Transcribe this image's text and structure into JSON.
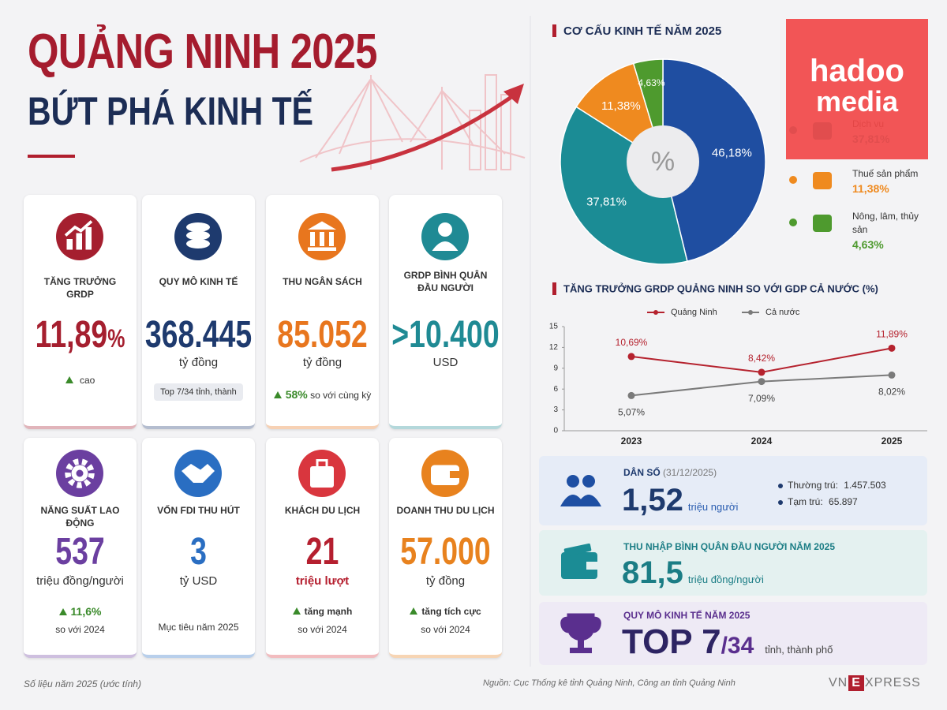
{
  "header": {
    "title": "QUẢNG NINH 2025",
    "subtitle": "BỨT PHÁ KINH TẾ"
  },
  "cards": [
    {
      "label": "TĂNG TRƯỞNG GRDP",
      "value": "11,89",
      "suffix": "%",
      "note": "cao"
    },
    {
      "label": "QUY MÔ KINH TẾ",
      "value": "368.445",
      "unit": "tỷ đồng",
      "badge": "Top 7/34 tỉnh, thành"
    },
    {
      "label": "THU NGÂN SÁCH",
      "value": "85.052",
      "unit": "tỷ đồng",
      "note_strong": "58%",
      "note": "so với cùng kỳ"
    },
    {
      "label": "GRDP BÌNH QUÂN ĐẦU NGƯỜI",
      "value": ">10.400",
      "unit": "USD"
    },
    {
      "label": "NĂNG SUẤT LAO ĐỘNG",
      "value": "537",
      "unit": "triệu đồng/người",
      "note_strong": "11,6%",
      "note": "so với 2024"
    },
    {
      "label": "VỐN FDI THU HÚT",
      "value": "3",
      "unit": "tỷ USD",
      "note": "Mục tiêu năm 2025"
    },
    {
      "label": "KHÁCH DU LỊCH",
      "value": "21",
      "unit": "triệu lượt",
      "note_strong": "tăng mạnh",
      "note": "so với 2024"
    },
    {
      "label": "DOANH THU DU LỊCH",
      "value": "57.000",
      "unit": "tỷ đồng",
      "note_strong": "tăng tích cực",
      "note": "so với 2024"
    }
  ],
  "chart_data": [
    {
      "type": "pie",
      "title": "CƠ CẤU KINH TẾ NĂM 2025",
      "center_label": "%",
      "categories": [
        null,
        "Dịch vụ",
        "Thuế sản phẩm",
        "Nông, lâm, thủy sản"
      ],
      "values": [
        46.18,
        37.81,
        11.38,
        4.63
      ],
      "value_labels": [
        "46,18%",
        "37,81%",
        "11,38%",
        "4,63%"
      ],
      "colors": [
        "#1f4ea1",
        "#1b8c95",
        "#ef8a1f",
        "#4e9a2e"
      ]
    },
    {
      "type": "line",
      "title": "TĂNG TRƯỞNG GRDP QUẢNG NINH SO VỚI GDP CẢ NƯỚC (%)",
      "categories": [
        "2023",
        "2024",
        "2025"
      ],
      "series": [
        {
          "name": "Quảng Ninh",
          "color": "#b5222e",
          "values": [
            10.69,
            8.42,
            11.89
          ],
          "value_labels": [
            "10,69%",
            "8,42%",
            "11,89%"
          ]
        },
        {
          "name": "Cả nước",
          "color": "#7a7a7a",
          "values": [
            5.07,
            7.09,
            8.02
          ],
          "value_labels": [
            "5,07%",
            "7,09%",
            "8,02%"
          ]
        }
      ],
      "ylim": [
        0,
        15
      ],
      "yticks": [
        0,
        3,
        6,
        9,
        12,
        15
      ],
      "legend": "top-left"
    }
  ],
  "panels": {
    "population": {
      "label": "DÂN SỐ",
      "date": "(31/12/2025)",
      "value": "1,52",
      "unit": "triệu người",
      "items": [
        {
          "label": "Thường trú:",
          "value": "1.457.503"
        },
        {
          "label": "Tạm trú:",
          "value": "65.897"
        }
      ]
    },
    "income": {
      "label": "THU NHẬP BÌNH QUÂN ĐẦU NGƯỜI NĂM 2025",
      "value": "81,5",
      "unit": "triệu đồng/người"
    },
    "rank": {
      "label": "QUY MÔ KINH TẾ NĂM 2025",
      "value": "TOP 7",
      "total": "/34",
      "unit": "tỉnh, thành phố"
    }
  },
  "footer": {
    "note": "Số liệu năm 2025 (ước tính)",
    "source": "Nguồn: Cục Thống kê tỉnh Quảng Ninh, Công an tỉnh Quảng Ninh",
    "logo_left": "VN",
    "logo_mid": "E",
    "logo_right": "XPRESS"
  },
  "watermark": {
    "line1": "hadoo",
    "line2": "media"
  }
}
